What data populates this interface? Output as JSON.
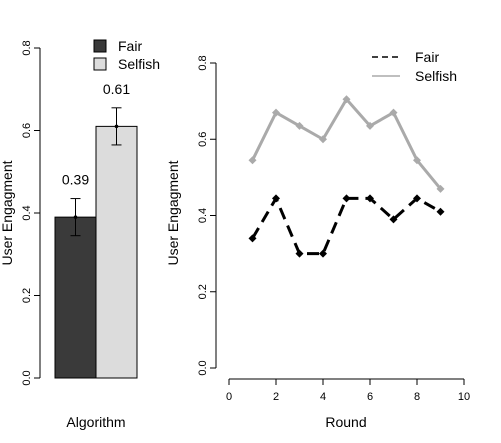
{
  "chart_data": [
    {
      "type": "bar",
      "title": "",
      "xlabel": "Algorithm",
      "ylabel": "User Engagment",
      "ylim": [
        0,
        0.8
      ],
      "yticks": [
        "0.0",
        "0.2",
        "0.4",
        "0.6",
        "0.8"
      ],
      "categories": [
        "Fair",
        "Selfish"
      ],
      "values": [
        0.39,
        0.61
      ],
      "error": [
        0.045,
        0.045
      ],
      "data_labels": [
        "0.39",
        "0.61"
      ],
      "legend": [
        "Fair",
        "Selfish"
      ],
      "legend_position": "top-right",
      "colors": [
        "#3a3a3a",
        "#dcdcdc"
      ],
      "grid": false
    },
    {
      "type": "line",
      "title": "",
      "xlabel": "Round",
      "ylabel": "User Engagment",
      "xlim": [
        0,
        10
      ],
      "ylim": [
        0,
        0.8
      ],
      "xticks": [
        "0",
        "2",
        "4",
        "6",
        "8",
        "10"
      ],
      "yticks": [
        "0.0",
        "0.2",
        "0.4",
        "0.6",
        "0.8"
      ],
      "x": [
        1,
        2,
        3,
        4,
        5,
        6,
        7,
        8,
        9
      ],
      "series": [
        {
          "name": "Fair",
          "values": [
            0.34,
            0.445,
            0.3,
            0.3,
            0.445,
            0.445,
            0.39,
            0.445,
            0.41
          ],
          "color": "#000000",
          "style": "dashed"
        },
        {
          "name": "Selfish",
          "values": [
            0.545,
            0.67,
            0.635,
            0.6,
            0.705,
            0.635,
            0.67,
            0.545,
            0.47
          ],
          "color": "#aaaaaa",
          "style": "solid"
        }
      ],
      "legend_position": "top-right",
      "grid": false
    }
  ]
}
